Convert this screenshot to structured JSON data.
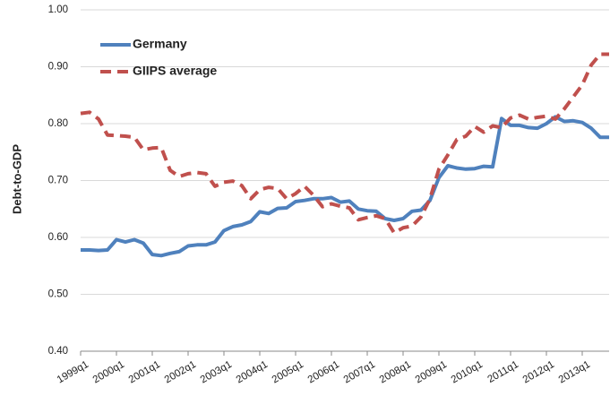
{
  "chart_data": {
    "type": "line",
    "y_label": "Debt-to-GDP",
    "categories": [
      "1999q1",
      null,
      null,
      null,
      "2000q1",
      null,
      null,
      null,
      "2001q1",
      null,
      null,
      null,
      "2002q1",
      null,
      null,
      null,
      "2003q1",
      null,
      null,
      null,
      "2004q1",
      null,
      null,
      null,
      "2005q1",
      null,
      null,
      null,
      "2006q1",
      null,
      null,
      null,
      "2007q1",
      null,
      null,
      null,
      "2008q1",
      null,
      null,
      null,
      "2009q1",
      null,
      null,
      null,
      "2010q1",
      null,
      null,
      null,
      "2011q1",
      null,
      null,
      null,
      "2012q1",
      null,
      null,
      null,
      "2013q1",
      null,
      null,
      null
    ],
    "series": [
      {
        "name": "Germany",
        "color": "#4f81bd",
        "dash": false,
        "values": [
          0.578,
          0.578,
          0.577,
          0.578,
          0.596,
          0.592,
          0.596,
          0.59,
          0.57,
          0.568,
          0.572,
          0.575,
          0.585,
          0.587,
          0.587,
          0.592,
          0.612,
          0.619,
          0.622,
          0.628,
          0.645,
          0.642,
          0.651,
          0.652,
          0.663,
          0.665,
          0.668,
          0.668,
          0.67,
          0.662,
          0.664,
          0.65,
          0.647,
          0.646,
          0.633,
          0.63,
          0.633,
          0.646,
          0.648,
          0.665,
          0.705,
          0.726,
          0.722,
          0.72,
          0.721,
          0.725,
          0.724,
          0.809,
          0.797,
          0.797,
          0.793,
          0.792,
          0.8,
          0.812,
          0.804,
          0.805,
          0.802,
          0.792,
          0.776,
          0.776
        ]
      },
      {
        "name": "GIIPS average",
        "color": "#c0504d",
        "dash": true,
        "values": [
          0.818,
          0.82,
          0.808,
          0.78,
          0.779,
          0.778,
          0.776,
          0.754,
          0.757,
          0.758,
          0.718,
          0.707,
          0.712,
          0.714,
          0.712,
          0.69,
          0.697,
          0.699,
          0.691,
          0.668,
          0.684,
          0.688,
          0.686,
          0.668,
          0.677,
          0.69,
          0.674,
          0.654,
          0.659,
          0.655,
          0.652,
          0.631,
          0.635,
          0.638,
          0.633,
          0.608,
          0.617,
          0.62,
          0.636,
          0.668,
          0.72,
          0.745,
          0.772,
          0.778,
          0.795,
          0.785,
          0.796,
          0.793,
          0.81,
          0.815,
          0.808,
          0.811,
          0.813,
          0.808,
          0.826,
          0.847,
          0.868,
          0.903,
          0.922,
          0.922
        ]
      }
    ],
    "ylim": [
      0.4,
      1.0
    ],
    "yticks": [
      {
        "value": 0.4,
        "label": "0.40"
      },
      {
        "value": 0.5,
        "label": "0.50"
      },
      {
        "value": 0.6,
        "label": "0.60"
      },
      {
        "value": 0.7,
        "label": "0.70"
      },
      {
        "value": 0.8,
        "label": "0.80"
      },
      {
        "value": 0.9,
        "label": "0.90"
      },
      {
        "value": 1.0,
        "label": "1.00"
      }
    ],
    "grid": true,
    "legend": "upper left"
  }
}
